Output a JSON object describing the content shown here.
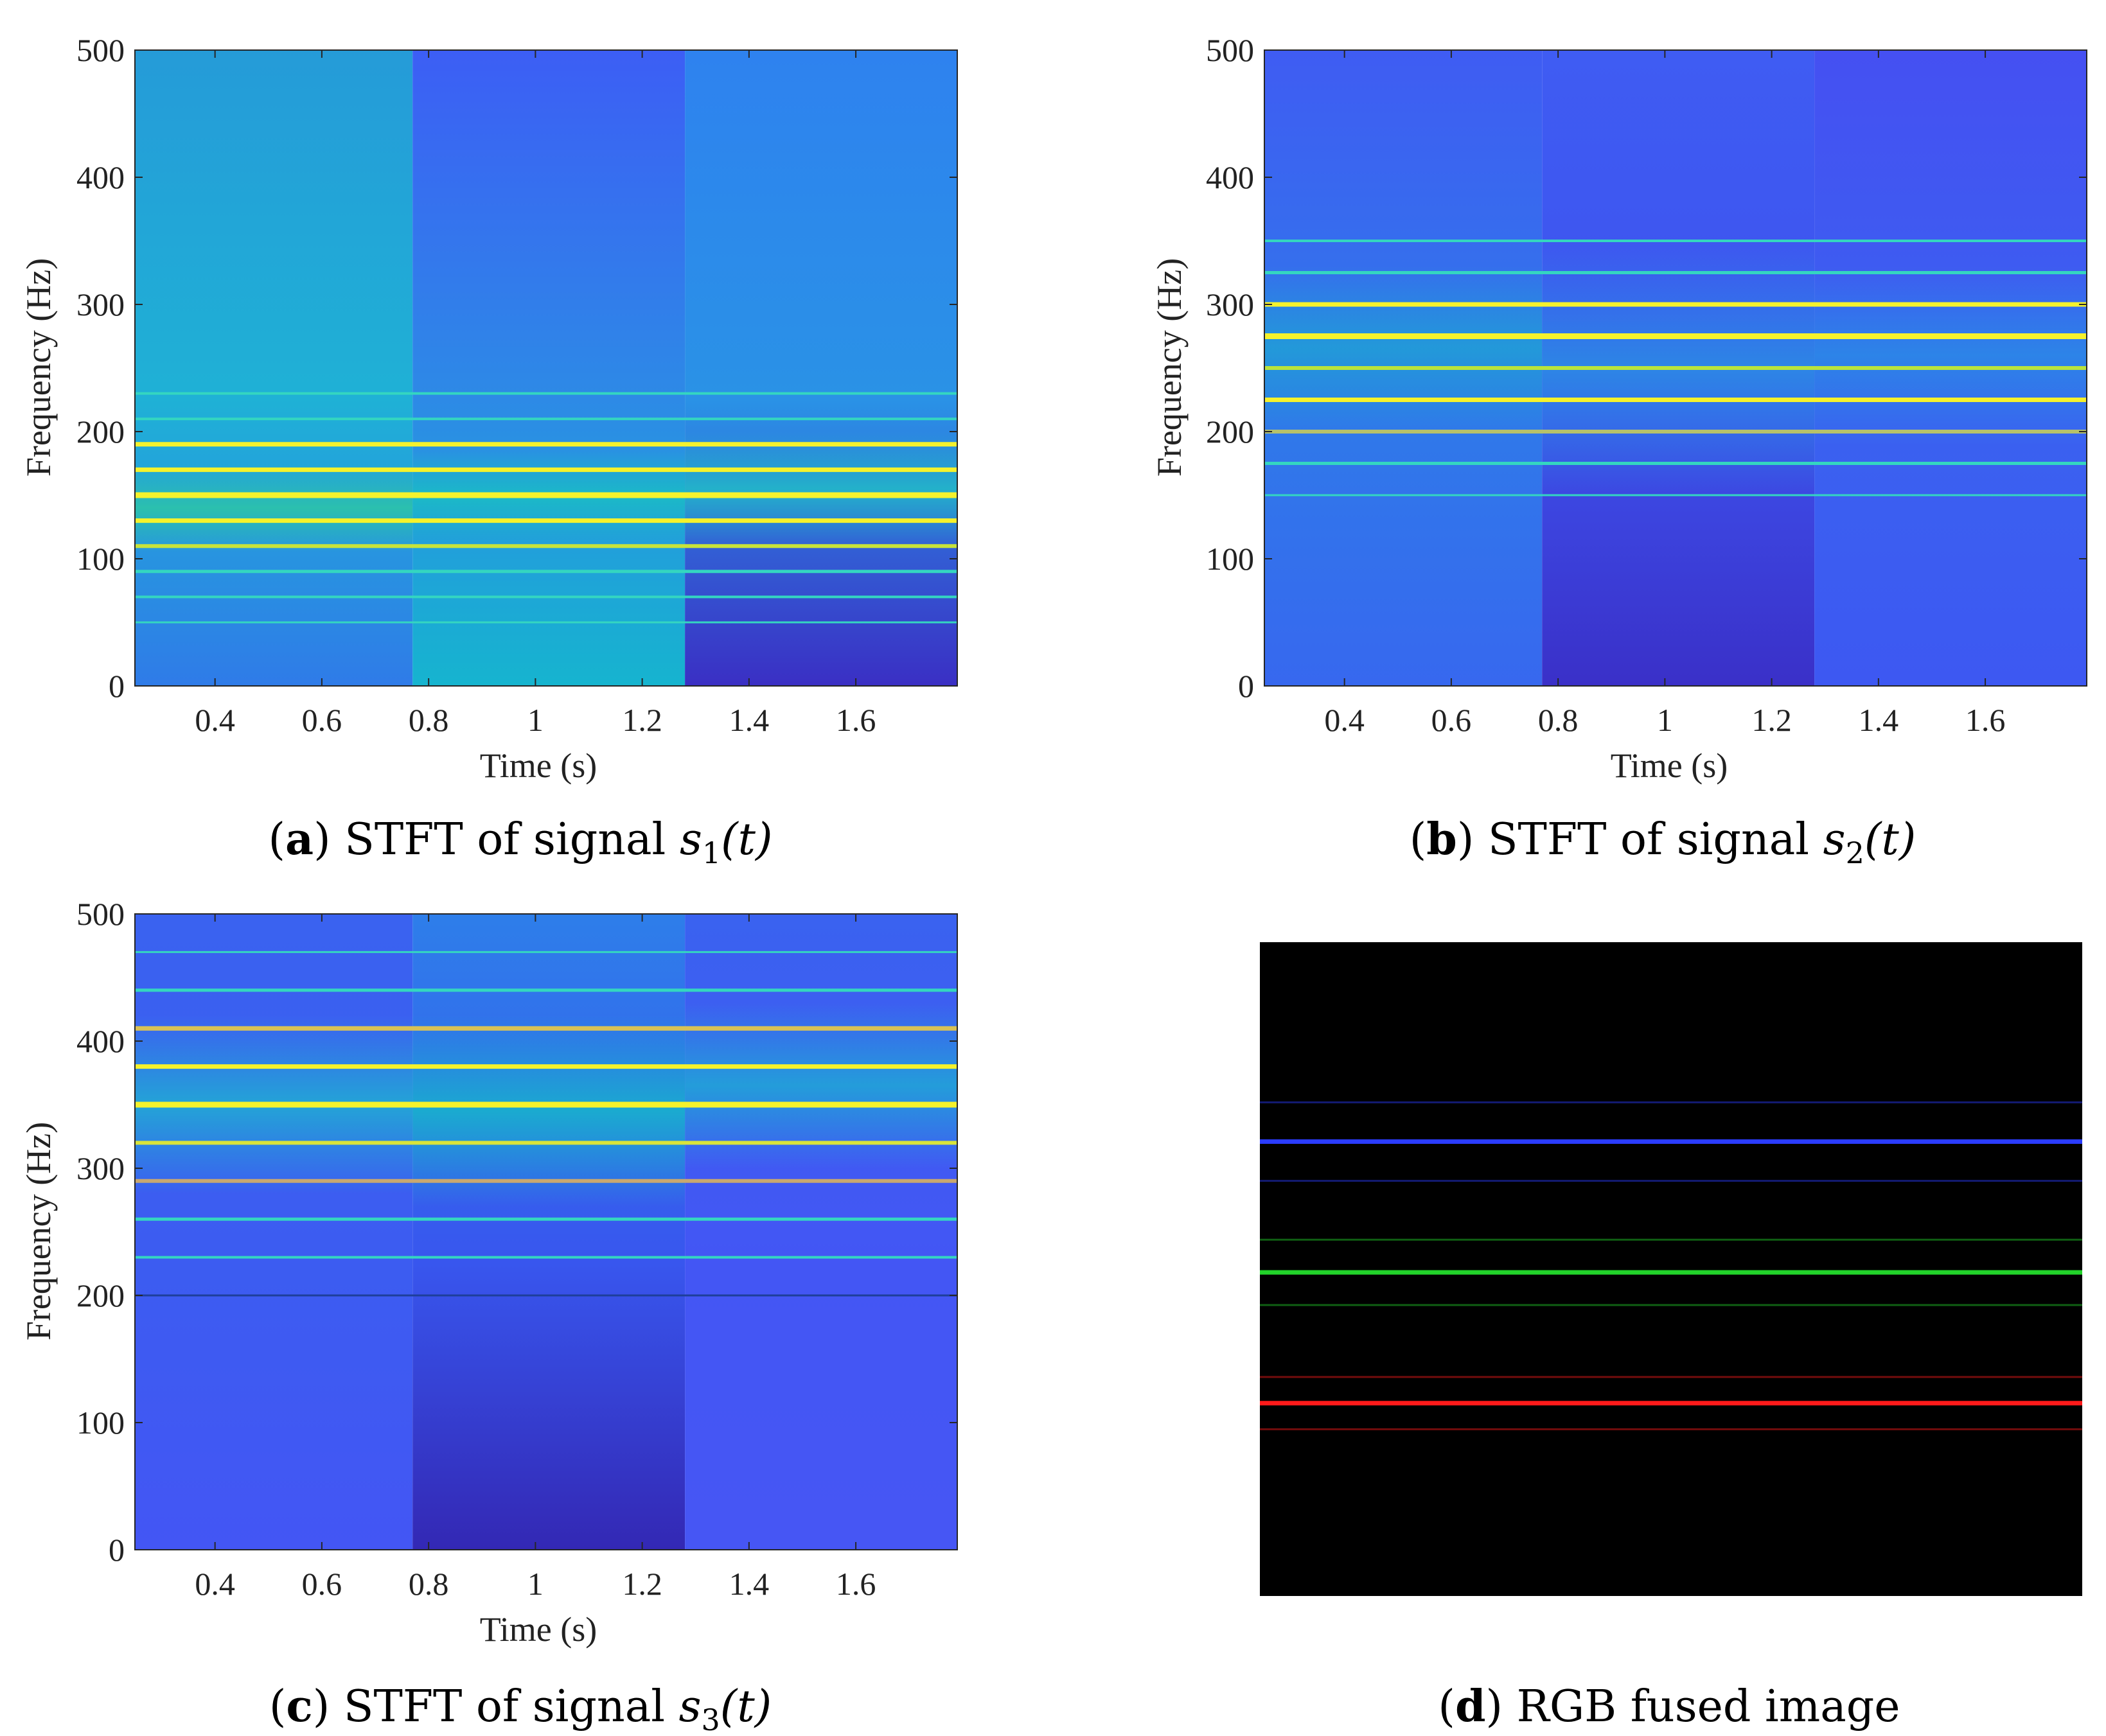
{
  "colors": {
    "yellow": "#f5f22c",
    "line_cyan": "#34d6c0",
    "dim_line": "#0f5a9e",
    "panel_d_bg": "#000000",
    "panel_d_red": "#ff1a1a",
    "panel_d_green": "#22d22a",
    "panel_d_blue": "#2a3cff"
  },
  "chart_data": [
    {
      "type": "heatmap",
      "panel": "a",
      "caption": {
        "letter": "a",
        "prefix": "STFT of signal",
        "sym": "s",
        "sub": "1",
        "arg": "(t)"
      },
      "xlabel": "Time (s)",
      "ylabel": "Frequency (Hz)",
      "xlim": [
        0.25,
        1.79
      ],
      "ylim": [
        0,
        500
      ],
      "xticks": [
        "0.4",
        "0.6",
        "0.8",
        "1",
        "1.2",
        "1.4",
        "1.6"
      ],
      "xtick_values": [
        0.4,
        0.6,
        0.8,
        1.0,
        1.2,
        1.4,
        1.6
      ],
      "yticks": [
        "0",
        "100",
        "200",
        "300",
        "400",
        "500"
      ],
      "ytick_values": [
        0,
        100,
        200,
        300,
        400,
        500
      ],
      "segments": [
        {
          "t0": 0.25,
          "t1": 0.77,
          "top": "#259bd8",
          "mid": "#1fb1d6",
          "bottom": "#2f7be8",
          "band": {
            "f0": 105,
            "f1": 175,
            "color": "#2cc6a6"
          }
        },
        {
          "t0": 0.77,
          "t1": 1.28,
          "top": "#3c5ef5",
          "mid": "#2d8ae6",
          "bottom": "#16b4cf",
          "band": {
            "f0": 112,
            "f1": 185,
            "color": "#19bfc3"
          }
        },
        {
          "t0": 1.28,
          "t1": 1.79,
          "top": "#2e82ef",
          "mid": "#2a92e6",
          "bottom": "#3a2fc4",
          "band": {
            "f0": 110,
            "f1": 200,
            "color": "#21bcc7"
          }
        }
      ],
      "harmonics": [
        {
          "f": 230,
          "color": "#34d6c0",
          "w": 4
        },
        {
          "f": 210,
          "color": "#34d6c0",
          "w": 4
        },
        {
          "f": 190,
          "color": "#f5f22c",
          "w": 7
        },
        {
          "f": 170,
          "color": "#f5f22c",
          "w": 7
        },
        {
          "f": 150,
          "color": "#f5f22c",
          "w": 9
        },
        {
          "f": 130,
          "color": "#f5f22c",
          "w": 7
        },
        {
          "f": 110,
          "color": "#c7e33a",
          "w": 6
        },
        {
          "f": 90,
          "color": "#34d6c0",
          "w": 5
        },
        {
          "f": 70,
          "color": "#34d6c0",
          "w": 4
        },
        {
          "f": 50,
          "color": "#34d6c0",
          "w": 3
        }
      ]
    },
    {
      "type": "heatmap",
      "panel": "b",
      "caption": {
        "letter": "b",
        "prefix": "STFT of signal",
        "sym": "s",
        "sub": "2",
        "arg": "(t)"
      },
      "xlabel": "Time (s)",
      "ylabel": "Frequency (Hz)",
      "xlim": [
        0.25,
        1.79
      ],
      "ylim": [
        0,
        500
      ],
      "xticks": [
        "0.4",
        "0.6",
        "0.8",
        "1",
        "1.2",
        "1.4",
        "1.6"
      ],
      "xtick_values": [
        0.4,
        0.6,
        0.8,
        1.0,
        1.2,
        1.4,
        1.6
      ],
      "yticks": [
        "0",
        "100",
        "200",
        "300",
        "400",
        "500"
      ],
      "ytick_values": [
        0,
        100,
        200,
        300,
        400,
        500
      ],
      "segments": [
        {
          "t0": 0.25,
          "t1": 0.77,
          "top": "#3f5cf3",
          "mid": "#2f7ae9",
          "bottom": "#3768ef",
          "band": {
            "f0": 200,
            "f1": 330,
            "color": "#209fd6"
          }
        },
        {
          "t0": 0.77,
          "t1": 1.28,
          "top": "#3f5cf3",
          "mid": "#3d52ee",
          "bottom": "#3a30c8",
          "band": {
            "f0": 150,
            "f1": 350,
            "color": "#2a8ee4"
          }
        },
        {
          "t0": 1.28,
          "t1": 1.79,
          "top": "#4550f2",
          "mid": "#3a62f0",
          "bottom": "#3d58f2",
          "band": {
            "f0": 190,
            "f1": 330,
            "color": "#2a8ae6"
          }
        }
      ],
      "harmonics": [
        {
          "f": 350,
          "color": "#34d6c0",
          "w": 4
        },
        {
          "f": 325,
          "color": "#34d6c0",
          "w": 5
        },
        {
          "f": 300,
          "color": "#f5f22c",
          "w": 7
        },
        {
          "f": 275,
          "color": "#f5f22c",
          "w": 9
        },
        {
          "f": 250,
          "color": "#b9e43c",
          "w": 6
        },
        {
          "f": 225,
          "color": "#f5f22c",
          "w": 7
        },
        {
          "f": 200,
          "color": "#b7c16a",
          "w": 6
        },
        {
          "f": 175,
          "color": "#34d6c0",
          "w": 5
        },
        {
          "f": 150,
          "color": "#34d6c0",
          "w": 3
        }
      ]
    },
    {
      "type": "heatmap",
      "panel": "c",
      "caption": {
        "letter": "c",
        "prefix": "STFT of signal",
        "sym": "s",
        "sub": "3",
        "arg": "(t)"
      },
      "xlabel": "Time (s)",
      "ylabel": "Frequency (Hz)",
      "xlim": [
        0.25,
        1.79
      ],
      "ylim": [
        0,
        500
      ],
      "xticks": [
        "0.4",
        "0.6",
        "0.8",
        "1",
        "1.2",
        "1.4",
        "1.6"
      ],
      "xtick_values": [
        0.4,
        0.6,
        0.8,
        1.0,
        1.2,
        1.4,
        1.6
      ],
      "yticks": [
        "0",
        "100",
        "200",
        "300",
        "400",
        "500"
      ],
      "ytick_values": [
        0,
        100,
        200,
        300,
        400,
        500
      ],
      "segments": [
        {
          "t0": 0.25,
          "t1": 0.77,
          "top": "#3a62f0",
          "mid": "#3c5cf1",
          "bottom": "#4356f4",
          "band": {
            "f0": 280,
            "f1": 420,
            "color": "#1fb0d2"
          }
        },
        {
          "t0": 0.77,
          "t1": 1.28,
          "top": "#2e7eea",
          "mid": "#3856ee",
          "bottom": "#3328b4",
          "band": {
            "f0": 270,
            "f1": 420,
            "color": "#16b6cb"
          }
        },
        {
          "t0": 1.28,
          "t1": 1.79,
          "top": "#3a62f0",
          "mid": "#4356f4",
          "bottom": "#4656f4",
          "band": {
            "f0": 300,
            "f1": 430,
            "color": "#1fa8d6"
          }
        }
      ],
      "harmonics": [
        {
          "f": 470,
          "color": "#34d6c0",
          "w": 3
        },
        {
          "f": 440,
          "color": "#34d6c0",
          "w": 5
        },
        {
          "f": 410,
          "color": "#d8c256",
          "w": 7
        },
        {
          "f": 380,
          "color": "#f5f22c",
          "w": 7
        },
        {
          "f": 350,
          "color": "#f5f22c",
          "w": 9
        },
        {
          "f": 320,
          "color": "#d8e43a",
          "w": 6
        },
        {
          "f": 290,
          "color": "#c8a870",
          "w": 6
        },
        {
          "f": 260,
          "color": "#34d6c0",
          "w": 5
        },
        {
          "f": 230,
          "color": "#34d6c0",
          "w": 4
        },
        {
          "f": 200,
          "color": "#1e3f9a",
          "w": 3
        }
      ]
    },
    {
      "type": "heatmap",
      "panel": "d",
      "caption": {
        "letter": "d",
        "text": "RGB fused image"
      },
      "background": "#000000",
      "y_norm_range": [
        0,
        1
      ],
      "lines": [
        {
          "y": 0.245,
          "color": "#2a3cff",
          "opacity": 0.45,
          "w": 3
        },
        {
          "y": 0.305,
          "color": "#2a3cff",
          "opacity": 1.0,
          "w": 7
        },
        {
          "y": 0.365,
          "color": "#2a3cff",
          "opacity": 0.45,
          "w": 3
        },
        {
          "y": 0.455,
          "color": "#22d22a",
          "opacity": 0.45,
          "w": 3
        },
        {
          "y": 0.505,
          "color": "#22d22a",
          "opacity": 1.0,
          "w": 7
        },
        {
          "y": 0.555,
          "color": "#22d22a",
          "opacity": 0.45,
          "w": 3
        },
        {
          "y": 0.665,
          "color": "#ff1a1a",
          "opacity": 0.45,
          "w": 3
        },
        {
          "y": 0.705,
          "color": "#ff1a1a",
          "opacity": 1.0,
          "w": 7
        },
        {
          "y": 0.745,
          "color": "#ff1a1a",
          "opacity": 0.45,
          "w": 3
        }
      ]
    }
  ]
}
